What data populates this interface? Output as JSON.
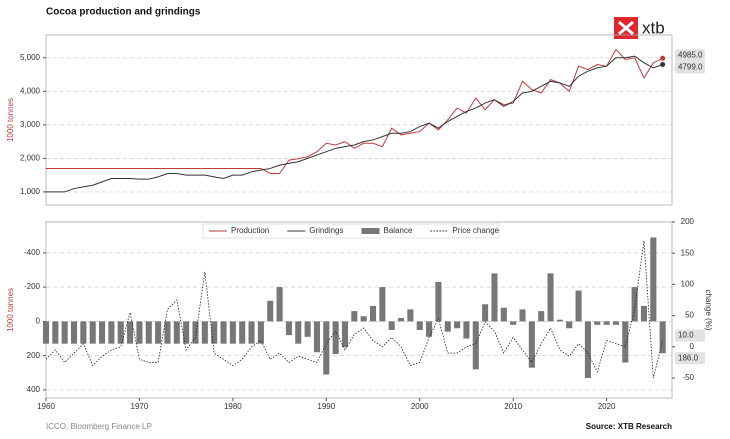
{
  "logo": "xtb",
  "footer": {
    "left": "ICCO, Bloomberg Finance LP",
    "right": "Source: XTB Research"
  },
  "chart_data": [
    {
      "type": "line",
      "title": "Cocoa production and grindings",
      "y_label": "1000 tonnes",
      "x": [
        1960,
        1961,
        1962,
        1963,
        1964,
        1965,
        1966,
        1967,
        1968,
        1969,
        1970,
        1971,
        1972,
        1973,
        1974,
        1975,
        1976,
        1977,
        1978,
        1979,
        1980,
        1981,
        1982,
        1983,
        1984,
        1985,
        1986,
        1987,
        1988,
        1989,
        1990,
        1991,
        1992,
        1993,
        1994,
        1995,
        1996,
        1997,
        1998,
        1999,
        2000,
        2001,
        2002,
        2003,
        2004,
        2005,
        2006,
        2007,
        2008,
        2009,
        2010,
        2011,
        2012,
        2013,
        2014,
        2015,
        2016,
        2017,
        2018,
        2019,
        2020,
        2021,
        2022,
        2023,
        2024,
        2025,
        2026
      ],
      "xlim": [
        1960,
        2027
      ],
      "ylim": [
        610,
        5680
      ],
      "yticks": [
        {
          "value": 1000,
          "label": "1,000"
        },
        {
          "value": 2000,
          "label": "2,000"
        },
        {
          "value": 3000,
          "label": "3,000"
        },
        {
          "value": 4000,
          "label": "4,000"
        },
        {
          "value": 5000,
          "label": "5,000"
        }
      ],
      "grid": true,
      "series": [
        {
          "name": "Production",
          "color": "#c23b3b",
          "end_label": "4985.0",
          "values": [
            1700,
            1700,
            1700,
            1700,
            1700,
            1700,
            1700,
            1700,
            1700,
            1700,
            1700,
            1700,
            1700,
            1700,
            1700,
            1700,
            1700,
            1700,
            1700,
            1700,
            1700,
            1700,
            1700,
            1700,
            1550,
            1550,
            1950,
            1990,
            2050,
            2200,
            2450,
            2400,
            2500,
            2300,
            2450,
            2450,
            2350,
            2900,
            2700,
            2750,
            2800,
            3050,
            2850,
            3150,
            3500,
            3350,
            3800,
            3450,
            3750,
            3600,
            3650,
            4300,
            4050,
            3950,
            4350,
            4250,
            4000,
            4750,
            4650,
            4800,
            4750,
            5250,
            4950,
            5000,
            4400,
            4850,
            4985
          ]
        },
        {
          "name": "Grindings",
          "color": "#333333",
          "end_label": "4799.0",
          "values": [
            1000,
            1000,
            1000,
            1100,
            1150,
            1200,
            1300,
            1400,
            1400,
            1400,
            1380,
            1380,
            1450,
            1550,
            1550,
            1500,
            1500,
            1500,
            1450,
            1400,
            1500,
            1500,
            1600,
            1650,
            1700,
            1800,
            1850,
            1900,
            2000,
            2100,
            2200,
            2300,
            2350,
            2400,
            2500,
            2550,
            2650,
            2750,
            2750,
            2800,
            2950,
            3050,
            2900,
            3100,
            3250,
            3400,
            3500,
            3650,
            3750,
            3550,
            3700,
            3950,
            4000,
            4150,
            4300,
            4250,
            4150,
            4450,
            4600,
            4700,
            4750,
            5000,
            5000,
            5050,
            4850,
            4700,
            4799
          ]
        }
      ]
    },
    {
      "type": "bar-line",
      "y_label": "1000 tonnes",
      "y2_label": "change (%)",
      "x": [
        1960,
        1961,
        1962,
        1963,
        1964,
        1965,
        1966,
        1967,
        1968,
        1969,
        1970,
        1971,
        1972,
        1973,
        1974,
        1975,
        1976,
        1977,
        1978,
        1979,
        1980,
        1981,
        1982,
        1983,
        1984,
        1985,
        1986,
        1987,
        1988,
        1989,
        1990,
        1991,
        1992,
        1993,
        1994,
        1995,
        1996,
        1997,
        1998,
        1999,
        2000,
        2001,
        2002,
        2003,
        2004,
        2005,
        2006,
        2007,
        2008,
        2009,
        2010,
        2011,
        2012,
        2013,
        2014,
        2015,
        2016,
        2017,
        2018,
        2019,
        2020,
        2021,
        2022,
        2023,
        2024,
        2025,
        2026
      ],
      "xlim": [
        1960,
        2027
      ],
      "xticks": [
        1960,
        1970,
        1980,
        1990,
        2000,
        2010,
        2020
      ],
      "ylim": [
        -580,
        447
      ],
      "y_inverted": true,
      "yticks": [
        -400,
        -200,
        0,
        200,
        400
      ],
      "y2lim": [
        -82,
        200
      ],
      "y2ticks": [
        -50,
        0,
        50,
        100,
        150,
        200
      ],
      "grid": true,
      "legend": "top",
      "series": [
        {
          "name": "Balance",
          "color": "#777777",
          "end_label": "186.0",
          "values": [
            130,
            130,
            130,
            130,
            130,
            130,
            130,
            130,
            130,
            130,
            130,
            130,
            130,
            130,
            130,
            130,
            130,
            130,
            130,
            130,
            130,
            130,
            130,
            130,
            -120,
            -200,
            80,
            130,
            90,
            180,
            310,
            190,
            150,
            -60,
            -30,
            -90,
            -200,
            50,
            -20,
            -70,
            50,
            90,
            -230,
            60,
            40,
            100,
            280,
            -100,
            -280,
            -80,
            20,
            -70,
            270,
            -60,
            -280,
            -10,
            40,
            -180,
            330,
            20,
            20,
            20,
            240,
            -200,
            -90,
            -490,
            186
          ]
        },
        {
          "name": "Price change",
          "color": "#222222",
          "axis": "y2",
          "end_label": "10.0",
          "values": [
            -20,
            -5,
            -25,
            -10,
            5,
            -30,
            -15,
            -5,
            0,
            55,
            -20,
            -25,
            -25,
            60,
            75,
            -5,
            15,
            120,
            -10,
            -20,
            -30,
            -20,
            0,
            10,
            -20,
            -10,
            -25,
            -15,
            -20,
            -25,
            5,
            25,
            -5,
            20,
            30,
            10,
            0,
            15,
            0,
            -30,
            -25,
            15,
            45,
            -10,
            -10,
            0,
            5,
            40,
            25,
            -10,
            15,
            -5,
            -25,
            5,
            30,
            -5,
            -15,
            5,
            -10,
            -40,
            10,
            5,
            0,
            60,
            170,
            -50,
            10
          ]
        }
      ]
    }
  ]
}
